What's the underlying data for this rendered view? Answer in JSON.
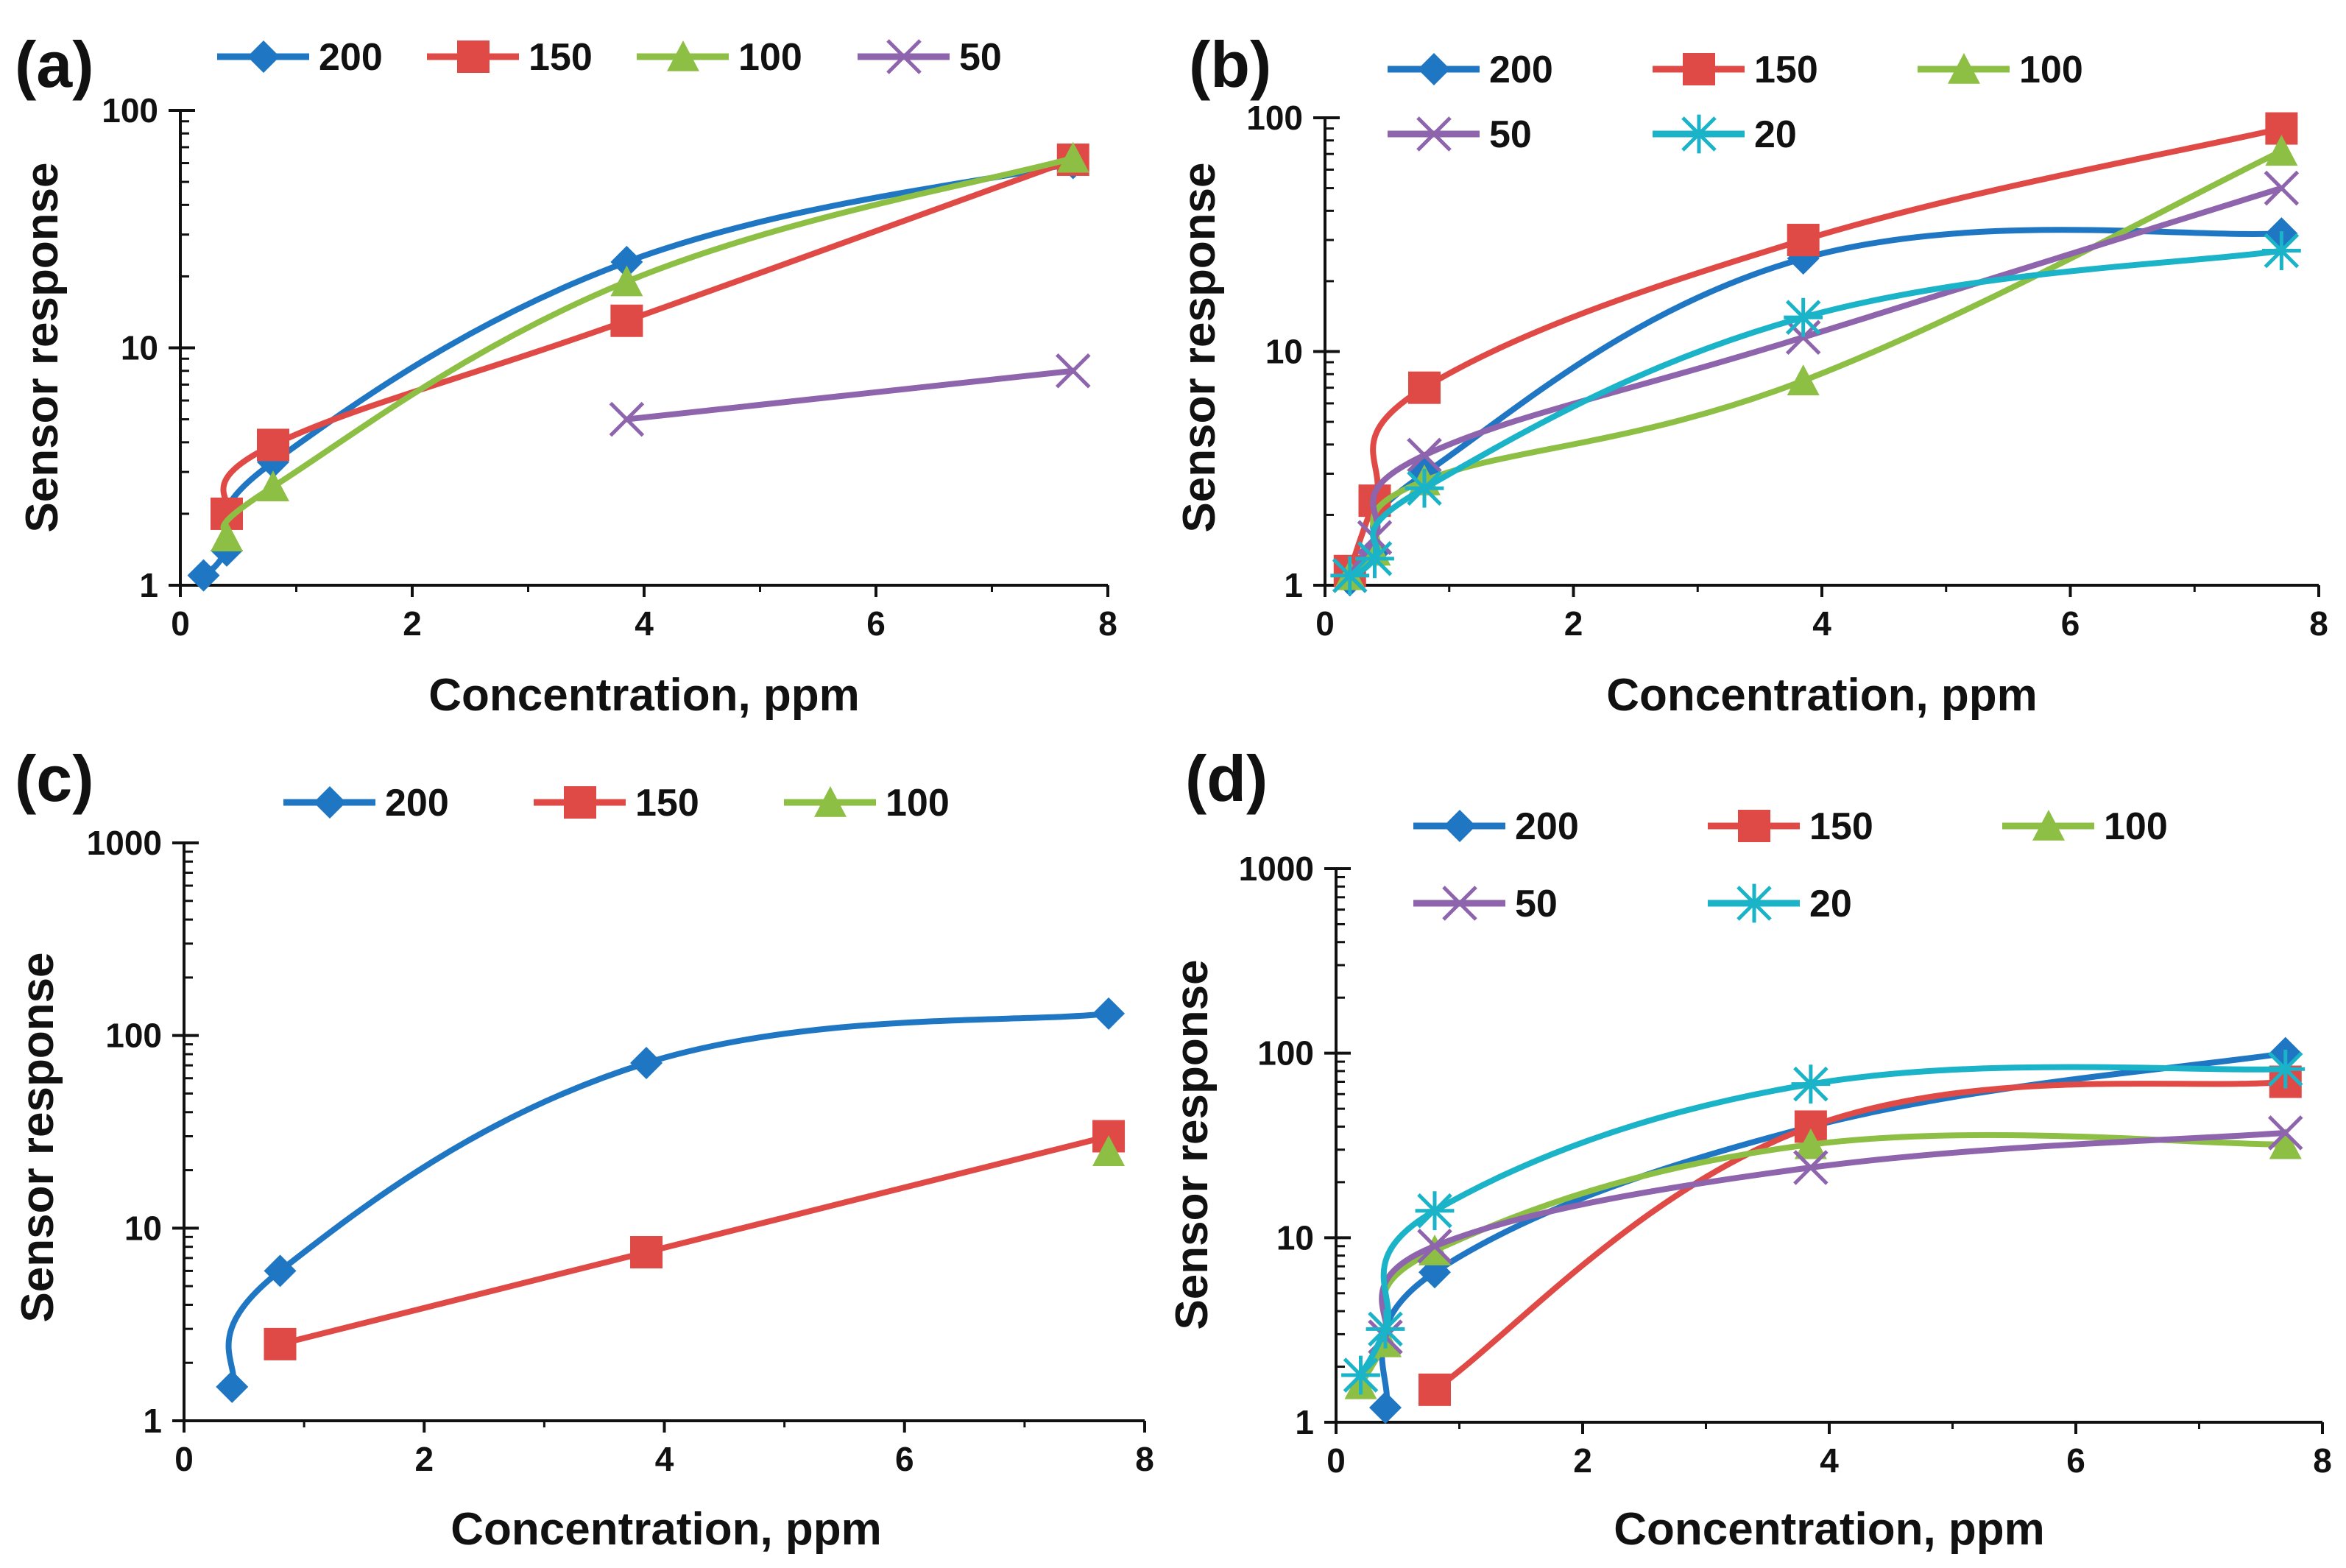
{
  "figure": {
    "colors": {
      "200": "#1f77c4",
      "150": "#e04a46",
      "100": "#8dbf45",
      "50": "#8e64ad",
      "20": "#1ab3c8"
    }
  },
  "chart_data": [
    {
      "type": "line",
      "panel_label": "(a)",
      "title": "",
      "xlabel": "Concentration, ppm",
      "ylabel": "Sensor response",
      "xlim": [
        0,
        8
      ],
      "ylim": [
        1,
        100
      ],
      "yscale": "log",
      "xticks": [
        "0",
        "2",
        "4",
        "6",
        "8"
      ],
      "yticks": [
        "1",
        "10",
        "100"
      ],
      "legend_placement": "top",
      "series": [
        {
          "name": "200",
          "marker": "diamond",
          "x": [
            0.2,
            0.4,
            0.8,
            3.85,
            7.7
          ],
          "y": [
            1.1,
            1.4,
            3.3,
            23,
            60
          ]
        },
        {
          "name": "150",
          "marker": "square",
          "x": [
            0.4,
            0.8,
            3.85,
            7.7
          ],
          "y": [
            2.0,
            3.9,
            13,
            62
          ]
        },
        {
          "name": "100",
          "marker": "triangle",
          "x": [
            0.4,
            0.8,
            3.85,
            7.7
          ],
          "y": [
            1.6,
            2.6,
            19,
            63
          ]
        },
        {
          "name": "50",
          "marker": "x",
          "x": [
            3.85,
            7.7
          ],
          "y": [
            5,
            8
          ]
        }
      ]
    },
    {
      "type": "line",
      "panel_label": "(b)",
      "title": "",
      "xlabel": "Concentration, ppm",
      "ylabel": "Sensor response",
      "xlim": [
        0,
        8
      ],
      "ylim": [
        1,
        100
      ],
      "yscale": "log",
      "xticks": [
        "0",
        "2",
        "4",
        "6",
        "8"
      ],
      "yticks": [
        "1",
        "10",
        "100"
      ],
      "legend_placement": "top",
      "series": [
        {
          "name": "200",
          "marker": "diamond",
          "x": [
            0.2,
            0.4,
            0.8,
            3.85,
            7.7
          ],
          "y": [
            1.05,
            1.4,
            3.0,
            25,
            32
          ]
        },
        {
          "name": "150",
          "marker": "square",
          "x": [
            0.2,
            0.4,
            0.8,
            3.85,
            7.7
          ],
          "y": [
            1.15,
            2.3,
            7.0,
            30,
            90
          ]
        },
        {
          "name": "100",
          "marker": "triangle",
          "x": [
            0.2,
            0.4,
            0.8,
            3.85,
            7.7
          ],
          "y": [
            1.1,
            1.4,
            2.8,
            7.5,
            72
          ]
        },
        {
          "name": "50",
          "marker": "x",
          "x": [
            0.2,
            0.4,
            0.8,
            3.85,
            7.7
          ],
          "y": [
            1.1,
            1.6,
            3.6,
            11.5,
            50
          ]
        },
        {
          "name": "20",
          "marker": "star",
          "x": [
            0.2,
            0.4,
            0.8,
            3.85,
            7.7
          ],
          "y": [
            1.1,
            1.3,
            2.6,
            14,
            27
          ]
        }
      ]
    },
    {
      "type": "line",
      "panel_label": "(c)",
      "title": "",
      "xlabel": "Concentration, ppm",
      "ylabel": "Sensor response",
      "xlim": [
        0,
        8
      ],
      "ylim": [
        1,
        1000
      ],
      "yscale": "log",
      "xticks": [
        "0",
        "2",
        "4",
        "6",
        "8"
      ],
      "yticks": [
        "1",
        "10",
        "100",
        "1000"
      ],
      "legend_placement": "top",
      "series": [
        {
          "name": "200",
          "marker": "diamond",
          "x": [
            0.4,
            0.8,
            3.85,
            7.7
          ],
          "y": [
            1.5,
            6.0,
            72,
            130
          ]
        },
        {
          "name": "150",
          "marker": "square",
          "x": [
            0.8,
            3.85,
            7.7
          ],
          "y": [
            2.5,
            7.5,
            30
          ]
        },
        {
          "name": "100",
          "marker": "triangle",
          "x": [
            7.7
          ],
          "y": [
            25
          ]
        }
      ]
    },
    {
      "type": "line",
      "panel_label": "(d)",
      "title": "",
      "xlabel": "Concentration, ppm",
      "ylabel": "Sensor response",
      "xlim": [
        0,
        8
      ],
      "ylim": [
        1,
        1000
      ],
      "yscale": "log",
      "xticks": [
        "0",
        "2",
        "4",
        "6",
        "8"
      ],
      "yticks": [
        "1",
        "10",
        "100",
        "1000"
      ],
      "legend_placement": "top",
      "series": [
        {
          "name": "200",
          "marker": "diamond",
          "x": [
            0.4,
            0.8,
            3.85,
            7.7
          ],
          "y": [
            1.2,
            6.5,
            40,
            100
          ]
        },
        {
          "name": "150",
          "marker": "square",
          "x": [
            0.8,
            3.85,
            7.7
          ],
          "y": [
            1.5,
            40,
            70
          ]
        },
        {
          "name": "100",
          "marker": "triangle",
          "x": [
            0.2,
            0.4,
            0.8,
            3.85,
            7.7
          ],
          "y": [
            1.6,
            2.7,
            8.5,
            32,
            32
          ]
        },
        {
          "name": "50",
          "marker": "x",
          "x": [
            0.4,
            0.8,
            3.85,
            7.7
          ],
          "y": [
            2.9,
            9.0,
            24,
            37
          ]
        },
        {
          "name": "20",
          "marker": "star",
          "x": [
            0.2,
            0.4,
            0.8,
            3.85,
            7.7
          ],
          "y": [
            1.8,
            3.2,
            14,
            68,
            82
          ]
        }
      ]
    }
  ]
}
